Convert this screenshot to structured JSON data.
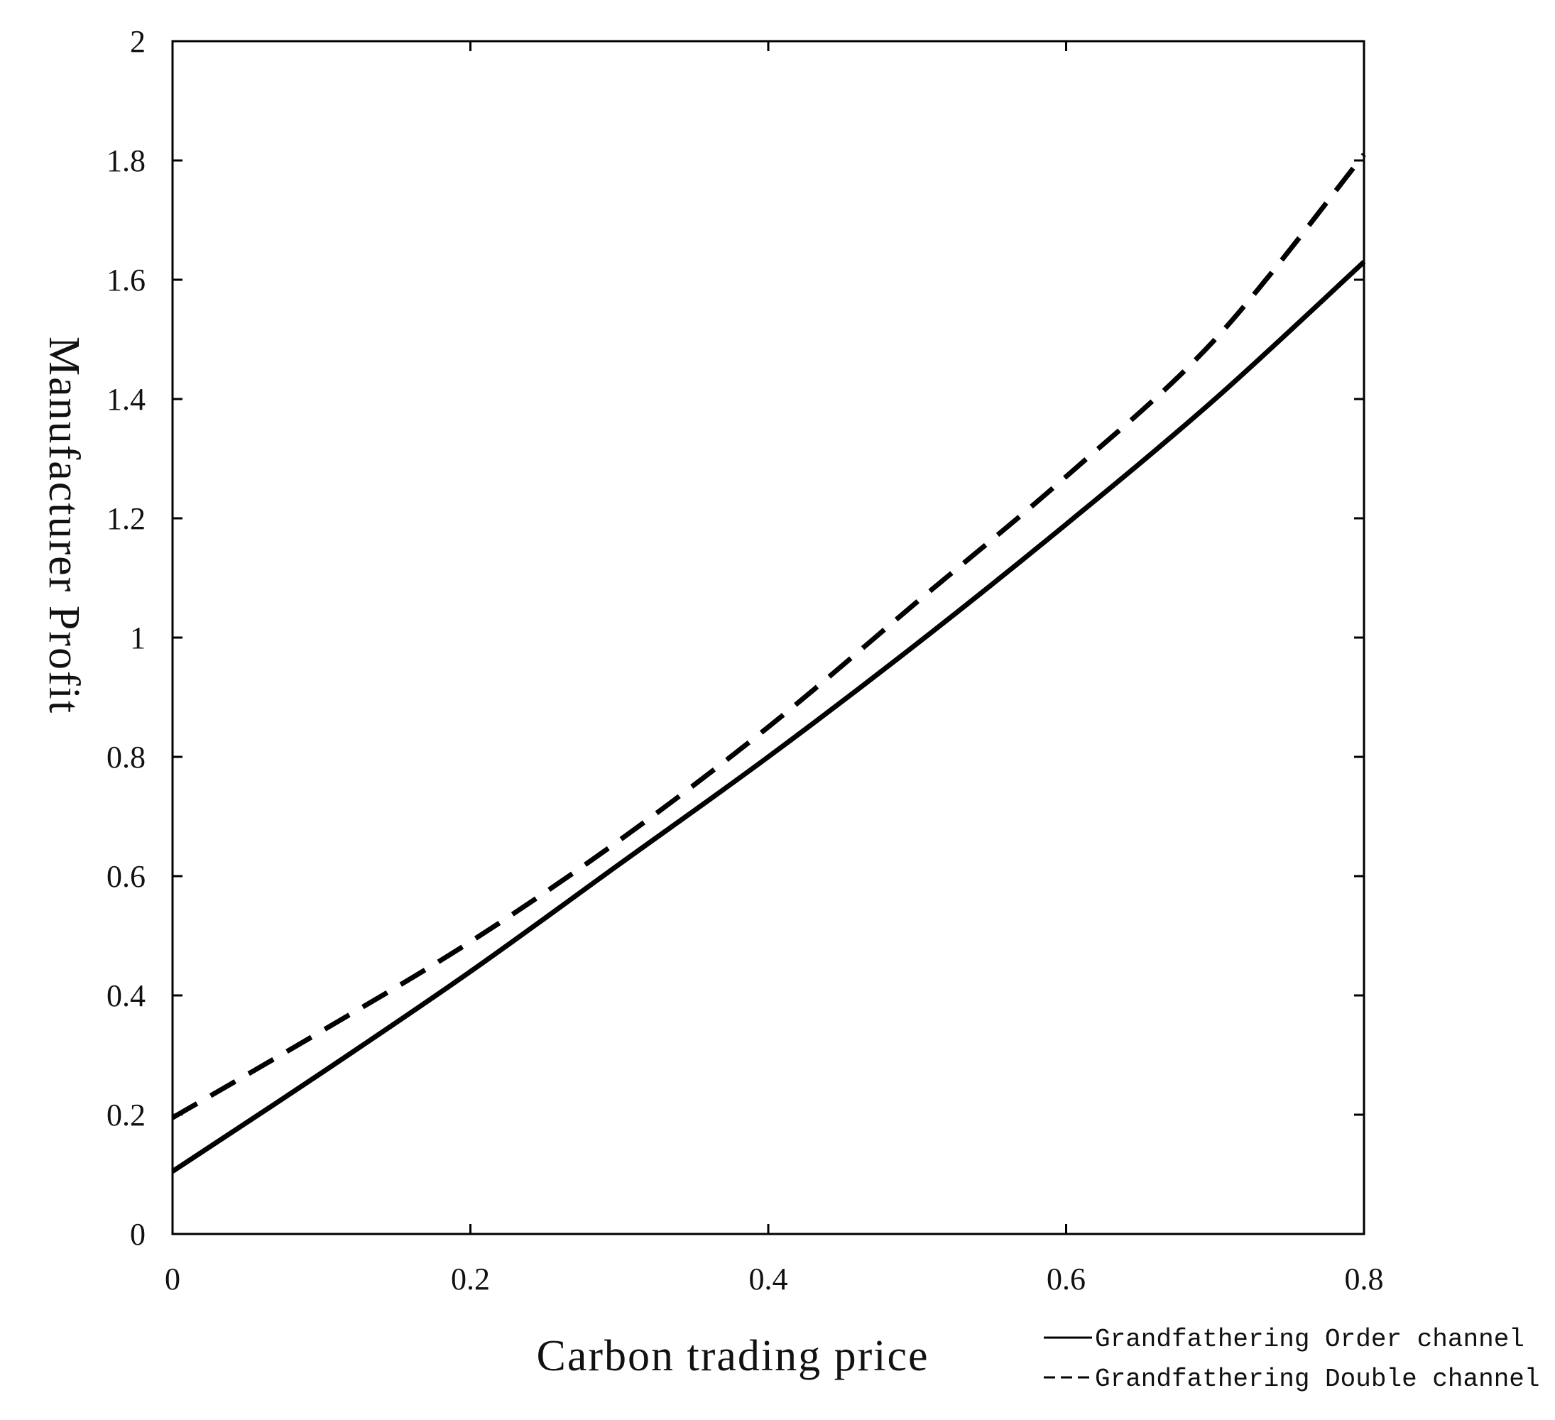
{
  "chart_data": {
    "type": "line",
    "title": "",
    "xlabel": "Carbon trading price",
    "ylabel": "Manufacturer Profit",
    "xlim": [
      0,
      0.8
    ],
    "ylim": [
      0,
      2
    ],
    "xticks": [
      0,
      0.2,
      0.4,
      0.6,
      0.8
    ],
    "xtick_labels": [
      "0",
      "0.2",
      "0.4",
      "0.6",
      "0.8"
    ],
    "yticks": [
      0,
      0.2,
      0.4,
      0.6,
      0.8,
      1,
      1.2,
      1.4,
      1.6,
      1.8,
      2
    ],
    "ytick_labels": [
      "0",
      "0.2",
      "0.4",
      "0.6",
      "0.8",
      "1",
      "1.2",
      "1.4",
      "1.6",
      "1.8",
      "2"
    ],
    "grid": false,
    "legend_position": "bottom-right, outside plot",
    "x": [
      0,
      0.1,
      0.2,
      0.3,
      0.4,
      0.5,
      0.6,
      0.7,
      0.8
    ],
    "series": [
      {
        "name": "Grandfathering Order channel",
        "style": "solid",
        "color": "#000000",
        "values": [
          0.105,
          0.27,
          0.44,
          0.62,
          0.8,
          0.99,
          1.19,
          1.4,
          1.63
        ]
      },
      {
        "name": "Grandfathering Double channel",
        "style": "dashed",
        "color": "#000000",
        "values": [
          0.195,
          0.34,
          0.49,
          0.66,
          0.85,
          1.06,
          1.27,
          1.5,
          1.81
        ]
      }
    ]
  }
}
